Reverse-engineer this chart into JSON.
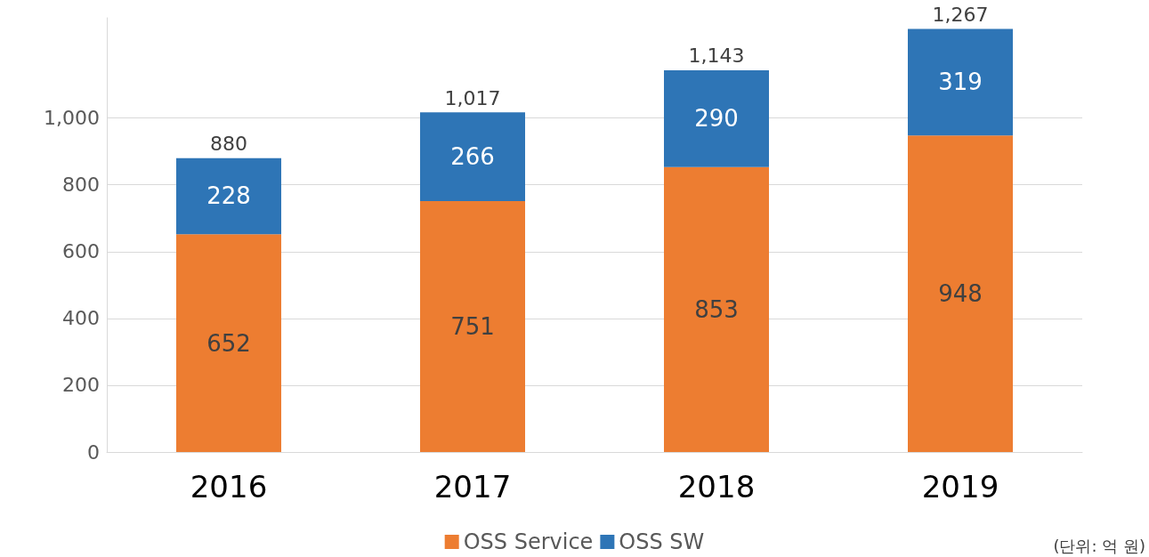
{
  "chart_data": {
    "type": "bar",
    "categories": [
      "2016",
      "2017",
      "2018",
      "2019"
    ],
    "series": [
      {
        "name": "OSS Service",
        "color": "#ed7d31",
        "values": [
          652,
          751,
          853,
          948
        ]
      },
      {
        "name": "OSS SW",
        "color": "#2e75b6",
        "values": [
          228,
          266,
          290,
          319
        ]
      }
    ],
    "stacked": true,
    "data_labels": true,
    "totals": [
      "880",
      "1,017",
      "1,143",
      "1,267"
    ],
    "ylim": [
      0,
      1300
    ],
    "yticks": [
      0,
      200,
      400,
      600,
      800,
      {
        "value": 1000,
        "label": "1,000"
      }
    ],
    "grid": "y",
    "legend": "bottom",
    "annotations": [
      "(단위: 억 원)"
    ]
  }
}
